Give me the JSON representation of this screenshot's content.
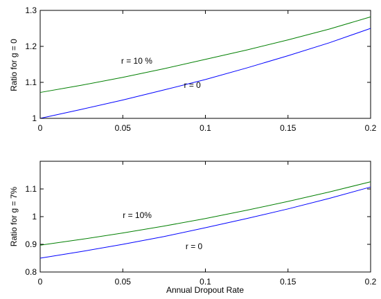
{
  "chart_data": [
    {
      "type": "line",
      "xlabel": "",
      "ylabel": "Ratio for g = 0",
      "xlim": [
        0,
        0.2
      ],
      "ylim": [
        1,
        1.3
      ],
      "xticks": [
        0,
        0.05,
        0.1,
        0.15,
        0.2
      ],
      "xtick_labels": [
        "0",
        "0.05",
        "0.1",
        "0.15",
        "0.2"
      ],
      "yticks": [
        1,
        1.1,
        1.2,
        1.3
      ],
      "ytick_labels": [
        "1",
        "1.1",
        "1.2",
        "1.3"
      ],
      "grid": false,
      "series": [
        {
          "name": "r = 10 %",
          "color": "#007f00",
          "x": [
            0,
            0.025,
            0.05,
            0.075,
            0.1,
            0.125,
            0.15,
            0.175,
            0.2
          ],
          "y": [
            1.072,
            1.092,
            1.114,
            1.138,
            1.164,
            1.19,
            1.218,
            1.248,
            1.282
          ]
        },
        {
          "name": "r = 0",
          "color": "#0000ff",
          "x": [
            0,
            0.025,
            0.05,
            0.075,
            0.1,
            0.125,
            0.15,
            0.175,
            0.2
          ],
          "y": [
            1.0,
            1.025,
            1.051,
            1.079,
            1.108,
            1.14,
            1.174,
            1.21,
            1.25
          ]
        }
      ],
      "annotations": [
        {
          "text": "r = 10 %",
          "x": 0.049,
          "y": 1.152
        },
        {
          "text": "r = 0",
          "x": 0.087,
          "y": 1.085
        }
      ]
    },
    {
      "type": "line",
      "xlabel": "Annual Dropout Rate",
      "ylabel": "Ratio for g = 7%",
      "xlim": [
        0,
        0.2
      ],
      "ylim": [
        0.8,
        1.2
      ],
      "xticks": [
        0,
        0.05,
        0.1,
        0.15,
        0.2
      ],
      "xtick_labels": [
        "0",
        "0.05",
        "0.1",
        "0.15",
        "0.2"
      ],
      "yticks": [
        0.8,
        0.9,
        1.0,
        1.1
      ],
      "ytick_labels": [
        "0.8",
        "0.9",
        "1",
        "1.1"
      ],
      "grid": false,
      "series": [
        {
          "name": "r = 10%",
          "color": "#007f00",
          "x": [
            0,
            0.025,
            0.05,
            0.075,
            0.1,
            0.125,
            0.15,
            0.175,
            0.2
          ],
          "y": [
            0.897,
            0.918,
            0.941,
            0.966,
            0.993,
            1.023,
            1.055,
            1.089,
            1.126
          ]
        },
        {
          "name": "r = 0",
          "color": "#0000ff",
          "x": [
            0,
            0.025,
            0.05,
            0.075,
            0.1,
            0.125,
            0.15,
            0.175,
            0.2
          ],
          "y": [
            0.85,
            0.874,
            0.9,
            0.928,
            0.96,
            0.993,
            1.028,
            1.066,
            1.107
          ]
        }
      ],
      "annotations": [
        {
          "text": "r = 10%",
          "x": 0.05,
          "y": 0.995
        },
        {
          "text": "r = 0",
          "x": 0.088,
          "y": 0.883
        }
      ]
    }
  ]
}
